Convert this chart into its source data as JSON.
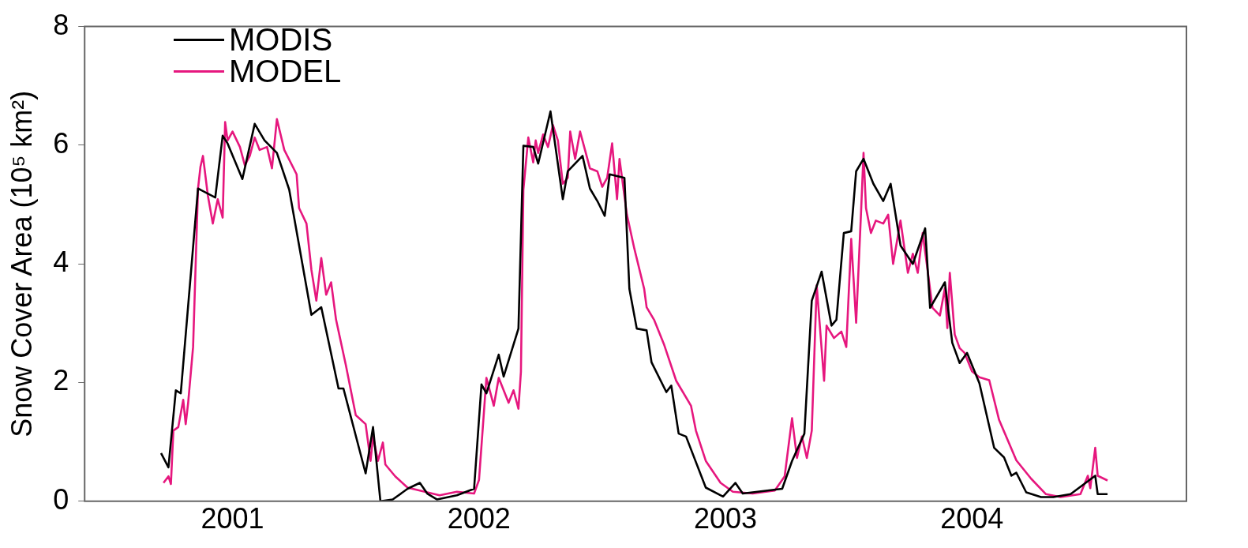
{
  "chart_data": {
    "type": "line",
    "ylabel": "Snow Cover Area (10⁵ km²)",
    "xlim": [
      2000.4,
      2004.87
    ],
    "xticks": [
      2001,
      2002,
      2003,
      2004
    ],
    "ylim": [
      0,
      8
    ],
    "yticks": [
      0,
      2,
      4,
      6,
      8
    ],
    "grid": false,
    "legend": "top left",
    "marker": "none",
    "line_style": "solid",
    "series": [
      {
        "name": "MODIS",
        "color": "#000000",
        "x": [
          2000.71,
          2000.74,
          2000.77,
          2000.79,
          2000.86,
          2000.93,
          2000.96,
          2000.98,
          2001.04,
          2001.09,
          2001.13,
          2001.18,
          2001.23,
          2001.32,
          2001.36,
          2001.43,
          2001.45,
          2001.54,
          2001.57,
          2001.6,
          2001.65,
          2001.71,
          2001.76,
          2001.79,
          2001.83,
          2001.91,
          2001.98,
          2002.01,
          2002.03,
          2002.08,
          2002.1,
          2002.16,
          2002.18,
          2002.22,
          2002.24,
          2002.29,
          2002.34,
          2002.36,
          2002.42,
          2002.45,
          2002.48,
          2002.51,
          2002.53,
          2002.59,
          2002.61,
          2002.64,
          2002.68,
          2002.7,
          2002.76,
          2002.78,
          2002.81,
          2002.84,
          2002.92,
          2002.99,
          2003.04,
          2003.07,
          2003.23,
          2003.27,
          2003.32,
          2003.35,
          2003.39,
          2003.43,
          2003.45,
          2003.48,
          2003.51,
          2003.53,
          2003.56,
          2003.6,
          2003.64,
          2003.67,
          2003.71,
          2003.76,
          2003.81,
          2003.83,
          2003.89,
          2003.92,
          2003.95,
          2003.98,
          2004.03,
          2004.09,
          2004.13,
          2004.16,
          2004.18,
          2004.22,
          2004.28,
          2004.33,
          2004.4,
          2004.5,
          2004.51,
          2004.55
        ],
        "values": [
          0.81,
          0.57,
          1.87,
          1.82,
          5.27,
          5.12,
          6.16,
          6.03,
          5.43,
          6.36,
          6.08,
          5.87,
          5.25,
          3.14,
          3.27,
          1.9,
          1.9,
          0.47,
          1.25,
          0,
          0.03,
          0.21,
          0.31,
          0.13,
          0.03,
          0.1,
          0.21,
          1.97,
          1.82,
          2.47,
          2.1,
          2.91,
          5.99,
          5.97,
          5.69,
          6.57,
          5.09,
          5.56,
          5.82,
          5.27,
          5.06,
          4.81,
          5.51,
          5.45,
          3.58,
          2.91,
          2.88,
          2.34,
          1.84,
          1.95,
          1.14,
          1.09,
          0.23,
          0.08,
          0.31,
          0.13,
          0.21,
          0.68,
          1.14,
          3.38,
          3.87,
          2.96,
          3.06,
          4.52,
          4.55,
          5.56,
          5.77,
          5.35,
          5.06,
          5.35,
          4.31,
          4,
          4.6,
          3.26,
          3.69,
          2.67,
          2.33,
          2.5,
          1.99,
          0.9,
          0.74,
          0.43,
          0.48,
          0.15,
          0.07,
          0.07,
          0.12,
          0.43,
          0.12,
          0.12
        ]
      },
      {
        "name": "MODEL",
        "color": "#e6177e",
        "x": [
          2000.72,
          2000.74,
          2000.75,
          2000.76,
          2000.78,
          2000.8,
          2000.81,
          2000.82,
          2000.84,
          2000.86,
          2000.87,
          2000.88,
          2000.9,
          2000.92,
          2000.94,
          2000.96,
          2000.97,
          2000.98,
          2001.0,
          2001.03,
          2001.05,
          2001.07,
          2001.09,
          2001.11,
          2001.14,
          2001.16,
          2001.18,
          2001.21,
          2001.26,
          2001.27,
          2001.3,
          2001.32,
          2001.34,
          2001.36,
          2001.38,
          2001.4,
          2001.42,
          2001.46,
          2001.5,
          2001.54,
          2001.56,
          2001.57,
          2001.59,
          2001.61,
          2001.62,
          2001.66,
          2001.71,
          2001.78,
          2001.84,
          2001.91,
          2001.98,
          2002.0,
          2002.03,
          2002.06,
          2002.08,
          2002.12,
          2002.14,
          2002.16,
          2002.17,
          2002.18,
          2002.2,
          2002.22,
          2002.23,
          2002.24,
          2002.26,
          2002.28,
          2002.3,
          2002.32,
          2002.34,
          2002.36,
          2002.37,
          2002.39,
          2002.41,
          2002.43,
          2002.45,
          2002.48,
          2002.5,
          2002.52,
          2002.54,
          2002.56,
          2002.57,
          2002.6,
          2002.63,
          2002.67,
          2002.68,
          2002.71,
          2002.75,
          2002.8,
          2002.86,
          2002.88,
          2002.92,
          2002.98,
          2003.03,
          2003.11,
          2003.2,
          2003.24,
          2003.27,
          2003.29,
          2003.31,
          2003.33,
          2003.35,
          2003.37,
          2003.4,
          2003.41,
          2003.44,
          2003.47,
          2003.49,
          2003.51,
          2003.53,
          2003.55,
          2003.56,
          2003.57,
          2003.59,
          2003.61,
          2003.64,
          2003.66,
          2003.68,
          2003.71,
          2003.74,
          2003.76,
          2003.78,
          2003.8,
          2003.84,
          2003.87,
          2003.89,
          2003.9,
          2003.91,
          2003.93,
          2003.95,
          2003.97,
          2004.0,
          2004.03,
          2004.07,
          2004.11,
          2004.18,
          2004.24,
          2004.3,
          2004.36,
          2004.44,
          2004.47,
          2004.48,
          2004.5,
          2004.51,
          2004.55
        ],
        "values": [
          0.31,
          0.42,
          0.29,
          1.19,
          1.25,
          1.71,
          1.3,
          1.66,
          2.6,
          5.27,
          5.64,
          5.82,
          5.15,
          4.68,
          5.09,
          4.78,
          6.39,
          6.08,
          6.23,
          5.97,
          5.66,
          5.82,
          6.13,
          5.92,
          5.97,
          5.61,
          6.44,
          5.92,
          5.51,
          4.94,
          4.68,
          3.9,
          3.38,
          4.1,
          3.48,
          3.69,
          3.06,
          2.29,
          1.45,
          1.3,
          0.68,
          1.09,
          0.68,
          0.99,
          0.62,
          0.42,
          0.23,
          0.16,
          0.1,
          0.16,
          0.13,
          0.36,
          2.08,
          1.61,
          2.08,
          1.66,
          1.87,
          1.56,
          2.18,
          5.25,
          6.13,
          5.71,
          6.08,
          5.87,
          6.18,
          5.97,
          6.34,
          6.08,
          5.35,
          5.45,
          6.23,
          5.77,
          6.23,
          5.92,
          5.61,
          5.56,
          5.3,
          5.45,
          6.03,
          5.09,
          5.77,
          4.83,
          4.26,
          3.58,
          3.27,
          3.06,
          2.65,
          2.03,
          1.61,
          1.19,
          0.68,
          0.31,
          0.16,
          0.13,
          0.18,
          0.42,
          1.4,
          0.73,
          1.09,
          0.73,
          1.19,
          3.64,
          2.03,
          2.96,
          2.75,
          2.86,
          2.6,
          4.42,
          3.01,
          4.88,
          5.87,
          4.94,
          4.52,
          4.73,
          4.68,
          4.83,
          4,
          4.73,
          3.85,
          4.17,
          3.85,
          4.52,
          3.26,
          3.13,
          3.59,
          2.92,
          3.85,
          2.81,
          2.58,
          2.5,
          2.19,
          2.09,
          2.04,
          1.37,
          0.69,
          0.38,
          0.12,
          0.07,
          0.12,
          0.43,
          0.22,
          0.9,
          0.43,
          0.35
        ]
      }
    ]
  }
}
